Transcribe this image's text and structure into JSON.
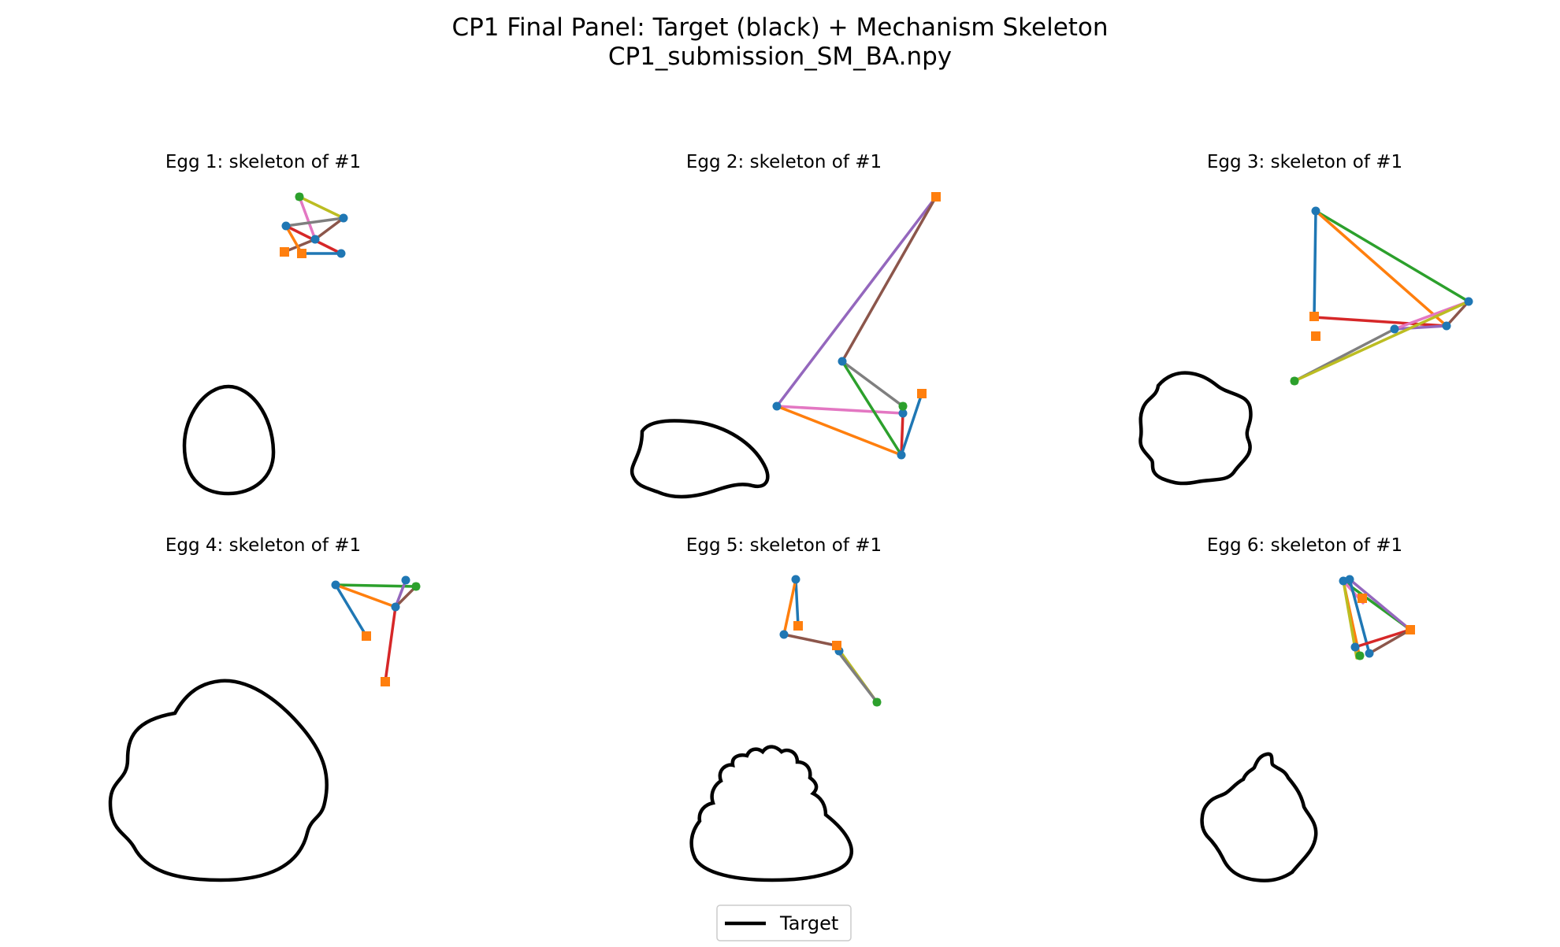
{
  "figure": {
    "title": "CP1 Final Panel: Target (black) + Mechanism Skeleton",
    "subtitle": "CP1_submission_SM_BA.npy"
  },
  "legend": {
    "label": "Target",
    "color": "#000000"
  },
  "colors": {
    "target": "#000000",
    "joint": "#1f77b4",
    "ground_pivot": "#ff7f0e",
    "output": "#2ca02c",
    "links": [
      "#1f77b4",
      "#ff7f0e",
      "#2ca02c",
      "#d62728",
      "#9467bd",
      "#8c564b",
      "#e377c2",
      "#7f7f7f",
      "#bcbd22"
    ]
  },
  "panels": [
    {
      "title": "Egg 1: skeleton of #1",
      "target_shape": "egg",
      "target_style": "egg outline"
    },
    {
      "title": "Egg 2: skeleton of #1",
      "target_shape": "egg",
      "target_style": "bean outline"
    },
    {
      "title": "Egg 3: skeleton of #1",
      "target_shape": "egg",
      "target_style": "wavy egg outline"
    },
    {
      "title": "Egg 4: skeleton of #1",
      "target_shape": "egg",
      "target_style": "large lumpy outline"
    },
    {
      "title": "Egg 5: skeleton of #1",
      "target_shape": "egg",
      "target_style": "cloud-top outline"
    },
    {
      "title": "Egg 6: skeleton of #1",
      "target_shape": "egg",
      "target_style": "peaked outline"
    }
  ]
}
